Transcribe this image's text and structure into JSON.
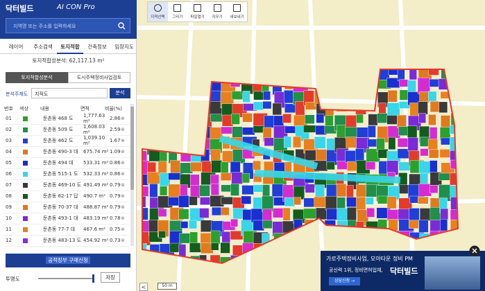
{
  "header": {
    "logo": "닥터빌드",
    "product": "AI CON Pro",
    "search_placeholder": "지역명 또는 주소를 입력하세요"
  },
  "tabs": [
    "레이어",
    "주소검색",
    "토지적합",
    "건축정보",
    "임장지도"
  ],
  "summary": "토지적합성분석: 62,117.13 m²",
  "sub_tabs": [
    "토지적합성분석",
    "도시주택정비사업검토"
  ],
  "analysis": {
    "label": "분석주제도",
    "select": "지적도",
    "button": "분석"
  },
  "table": {
    "columns": [
      "번호",
      "색상",
      "내용",
      "면적",
      "비율(%)"
    ],
    "rows": [
      {
        "no": "01",
        "color": "#2ca02c",
        "content": "둔촌동 468 도",
        "area": "1,777.63 m²",
        "ratio": "2.86"
      },
      {
        "no": "02",
        "color": "#1f8f4a",
        "content": "둔촌동 509 도",
        "area": "1,608.03 m²",
        "ratio": "2.59"
      },
      {
        "no": "03",
        "color": "#1f3fd6",
        "content": "둔촌동 462 도",
        "area": "1,039.10 m²",
        "ratio": "1.67"
      },
      {
        "no": "04",
        "color": "#e07a1f",
        "content": "둔촌동 490-3 대",
        "area": "675.74 m²",
        "ratio": "1.09"
      },
      {
        "no": "05",
        "color": "#1a2fd0",
        "content": "둔촌동 494 대",
        "area": "533.31 m²",
        "ratio": "0.86"
      },
      {
        "no": "06",
        "color": "#38d6e8",
        "content": "둔촌동 515-1 도",
        "area": "532.33 m²",
        "ratio": "0.86"
      },
      {
        "no": "07",
        "color": "#3a3a3a",
        "content": "둔촌동 469-10 도",
        "area": "491.49 m²",
        "ratio": "0.79"
      },
      {
        "no": "08",
        "color": "#135c1e",
        "content": "둔촌동 62-17 답",
        "area": "490.7 m²",
        "ratio": "0.79"
      },
      {
        "no": "09",
        "color": "#e5731a",
        "content": "둔촌동 70-37 대",
        "area": "488.87 m²",
        "ratio": "0.79"
      },
      {
        "no": "10",
        "color": "#7b2bd6",
        "content": "둔촌동 493-1 대",
        "area": "483.19 m²",
        "ratio": "0.78"
      },
      {
        "no": "11",
        "color": "#e8801e",
        "content": "둔촌동 77-7 대",
        "area": "467.6 m²",
        "ratio": "0.75"
      },
      {
        "no": "12",
        "color": "#8a2be2",
        "content": "둔촌동 483-13 도",
        "area": "454.92 m²",
        "ratio": "0.73"
      }
    ]
  },
  "purchase_button": "공적장부 구매신청",
  "opacity_label": "투명도",
  "save_button": "저장",
  "toolbar": [
    "지적선택",
    "그리기",
    "파일열기",
    "지우기",
    "내보내기"
  ],
  "scale": "50 m",
  "ad": {
    "line1": "가로주택정비사업, 모아타운 정비 PM",
    "line2": "공신력 1위, 정비면허업체,",
    "brand": "닥터빌드",
    "cta": "상담신청 →"
  }
}
